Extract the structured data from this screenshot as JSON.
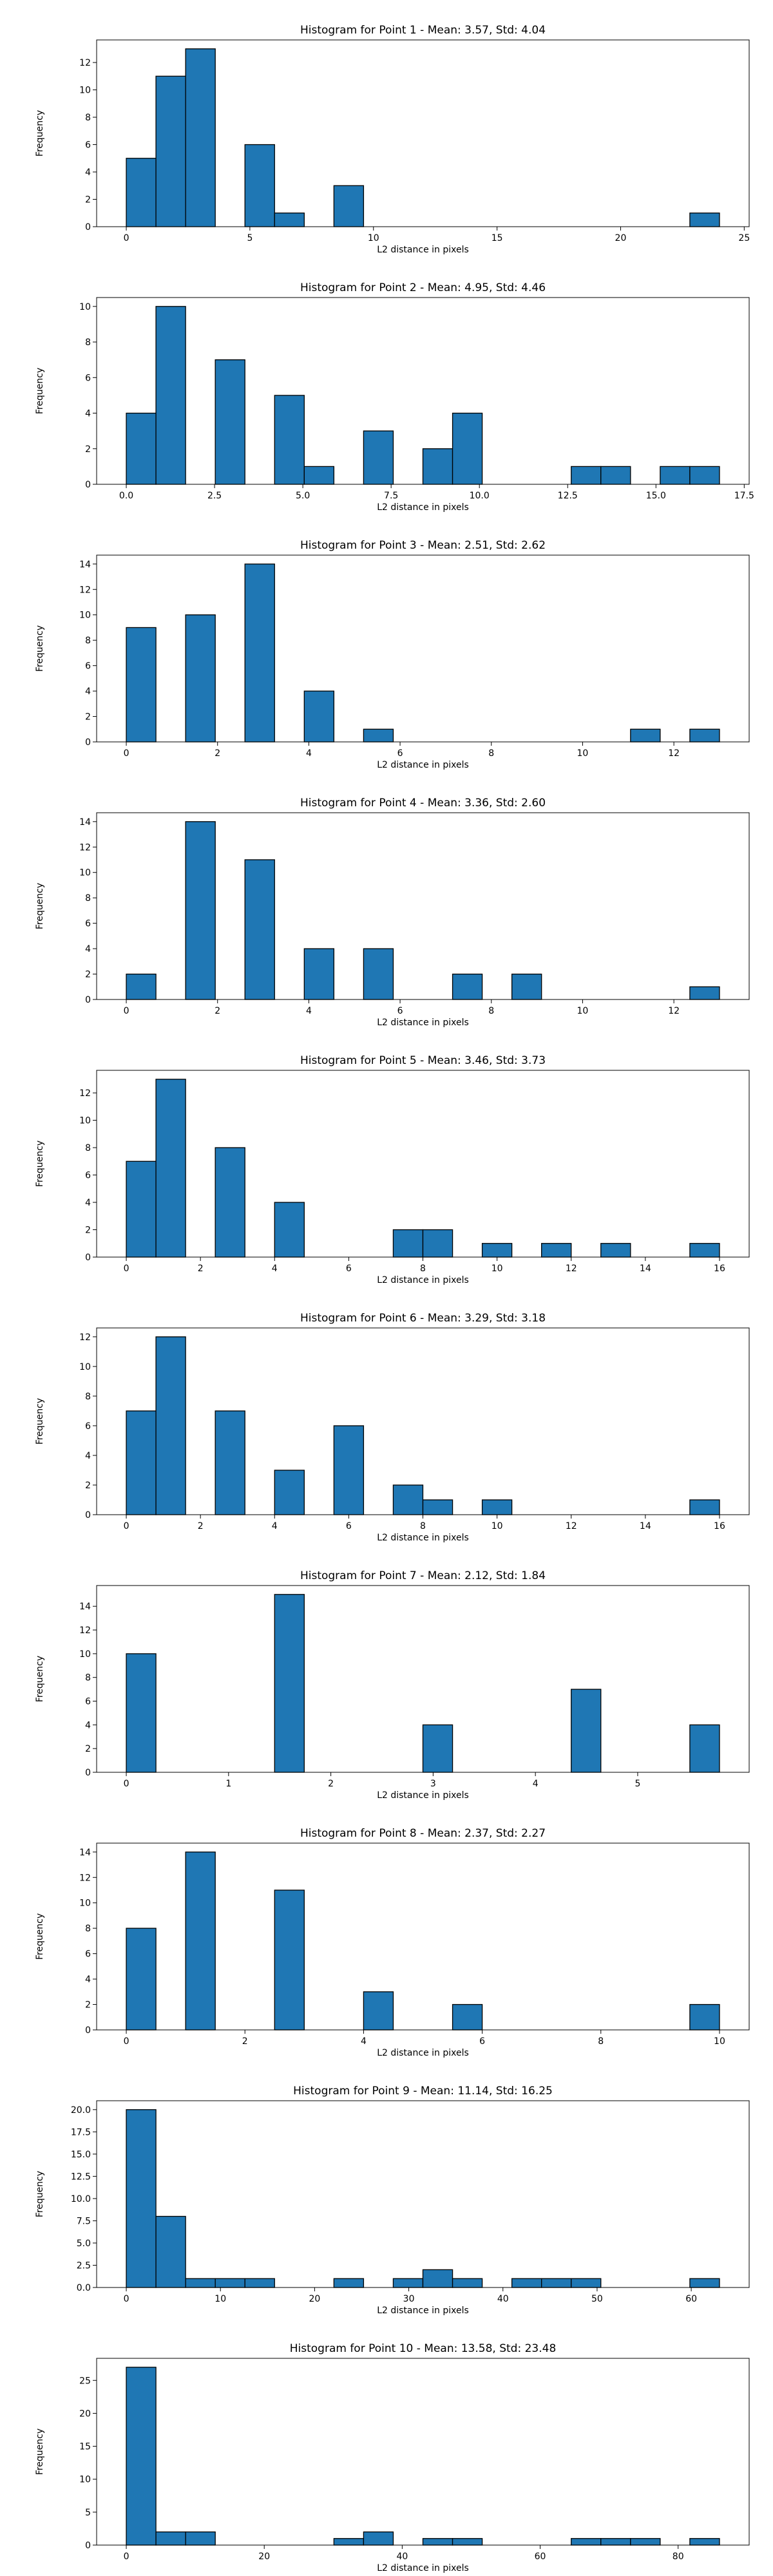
{
  "style": {
    "bar_color": "#1f77b4",
    "edge_color": "#000000",
    "axis_color": "#000000"
  },
  "chart_data": [
    {
      "type": "bar",
      "title": "Histogram for Point 1 - Mean: 3.57, Std: 4.04",
      "xlabel": "L2 distance in pixels",
      "ylabel": "Frequency",
      "xlim": [
        -1.2,
        25.2
      ],
      "ylim": [
        0,
        13.65
      ],
      "xticks": [
        0,
        5,
        10,
        15,
        20,
        25
      ],
      "xtick_labels": [
        "0",
        "5",
        "10",
        "15",
        "20",
        "25"
      ],
      "yticks": [
        0,
        2,
        4,
        6,
        8,
        10,
        12
      ],
      "ytick_labels": [
        "0",
        "2",
        "4",
        "6",
        "8",
        "10",
        "12"
      ],
      "grid": false,
      "bin_edges": [
        0,
        1.2,
        2.4,
        3.6,
        4.8,
        6.0,
        7.2,
        8.4,
        9.6,
        10.8,
        12.0,
        13.2,
        14.4,
        15.6,
        16.8,
        18.0,
        19.2,
        20.4,
        21.6,
        22.8,
        24.0
      ],
      "counts": [
        5,
        11,
        13,
        0,
        6,
        1,
        0,
        3,
        0,
        0,
        0,
        0,
        0,
        0,
        0,
        0,
        0,
        0,
        0,
        1
      ]
    },
    {
      "type": "bar",
      "title": "Histogram for Point 2 - Mean: 4.95, Std: 4.46",
      "xlabel": "L2 distance in pixels",
      "ylabel": "Frequency",
      "xlim": [
        -0.84,
        17.64
      ],
      "ylim": [
        0,
        10.5
      ],
      "xticks": [
        0,
        2.5,
        5,
        7.5,
        10,
        12.5,
        15,
        17.5
      ],
      "xtick_labels": [
        "0.0",
        "2.5",
        "5.0",
        "7.5",
        "10.0",
        "12.5",
        "15.0",
        "17.5"
      ],
      "yticks": [
        0,
        2,
        4,
        6,
        8,
        10
      ],
      "ytick_labels": [
        "0",
        "2",
        "4",
        "6",
        "8",
        "10"
      ],
      "grid": false,
      "bin_edges": [
        0,
        0.84,
        1.68,
        2.52,
        3.36,
        4.2,
        5.04,
        5.88,
        6.72,
        7.56,
        8.4,
        9.24,
        10.08,
        10.92,
        11.76,
        12.6,
        13.44,
        14.28,
        15.12,
        15.96,
        16.8
      ],
      "counts": [
        4,
        10,
        0,
        7,
        0,
        5,
        1,
        0,
        3,
        0,
        2,
        4,
        0,
        0,
        0,
        1,
        1,
        0,
        1,
        1
      ]
    },
    {
      "type": "bar",
      "title": "Histogram for Point 3 - Mean: 2.51, Std: 2.62",
      "xlabel": "L2 distance in pixels",
      "ylabel": "Frequency",
      "xlim": [
        -0.65,
        13.65
      ],
      "ylim": [
        0,
        14.7
      ],
      "xticks": [
        0,
        2,
        4,
        6,
        8,
        10,
        12
      ],
      "xtick_labels": [
        "0",
        "2",
        "4",
        "6",
        "8",
        "10",
        "12"
      ],
      "yticks": [
        0,
        2,
        4,
        6,
        8,
        10,
        12,
        14
      ],
      "ytick_labels": [
        "0",
        "2",
        "4",
        "6",
        "8",
        "10",
        "12",
        "14"
      ],
      "grid": false,
      "bin_edges": [
        0,
        0.65,
        1.3,
        1.95,
        2.6,
        3.25,
        3.9,
        4.55,
        5.2,
        5.85,
        6.5,
        7.15,
        7.8,
        8.45,
        9.1,
        9.75,
        10.4,
        11.05,
        11.7,
        12.35,
        13.0
      ],
      "counts": [
        9,
        0,
        10,
        0,
        14,
        0,
        4,
        0,
        1,
        0,
        0,
        0,
        0,
        0,
        0,
        0,
        0,
        1,
        0,
        1
      ]
    },
    {
      "type": "bar",
      "title": "Histogram for Point 4 - Mean: 3.36, Std: 2.60",
      "xlabel": "L2 distance in pixels",
      "ylabel": "Frequency",
      "xlim": [
        -0.65,
        13.65
      ],
      "ylim": [
        0,
        14.7
      ],
      "xticks": [
        0,
        2,
        4,
        6,
        8,
        10,
        12
      ],
      "xtick_labels": [
        "0",
        "2",
        "4",
        "6",
        "8",
        "10",
        "12"
      ],
      "yticks": [
        0,
        2,
        4,
        6,
        8,
        10,
        12,
        14
      ],
      "ytick_labels": [
        "0",
        "2",
        "4",
        "6",
        "8",
        "10",
        "12",
        "14"
      ],
      "grid": false,
      "bin_edges": [
        0,
        0.65,
        1.3,
        1.95,
        2.6,
        3.25,
        3.9,
        4.55,
        5.2,
        5.85,
        6.5,
        7.15,
        7.8,
        8.45,
        9.1,
        9.75,
        10.4,
        11.05,
        11.7,
        12.35,
        13.0
      ],
      "counts": [
        2,
        0,
        14,
        0,
        11,
        0,
        4,
        0,
        4,
        0,
        0,
        2,
        0,
        2,
        0,
        0,
        0,
        0,
        0,
        1
      ]
    },
    {
      "type": "bar",
      "title": "Histogram for Point 5 - Mean: 3.46, Std: 3.73",
      "xlabel": "L2 distance in pixels",
      "ylabel": "Frequency",
      "xlim": [
        -0.8,
        16.8
      ],
      "ylim": [
        0,
        13.65
      ],
      "xticks": [
        0,
        2,
        4,
        6,
        8,
        10,
        12,
        14,
        16
      ],
      "xtick_labels": [
        "0",
        "2",
        "4",
        "6",
        "8",
        "10",
        "12",
        "14",
        "16"
      ],
      "yticks": [
        0,
        2,
        4,
        6,
        8,
        10,
        12
      ],
      "ytick_labels": [
        "0",
        "2",
        "4",
        "6",
        "8",
        "10",
        "12"
      ],
      "grid": false,
      "bin_edges": [
        0,
        0.8,
        1.6,
        2.4,
        3.2,
        4.0,
        4.8,
        5.6,
        6.4,
        7.2,
        8.0,
        8.8,
        9.6,
        10.4,
        11.2,
        12.0,
        12.8,
        13.6,
        14.4,
        15.2,
        16.0
      ],
      "counts": [
        7,
        13,
        0,
        8,
        0,
        4,
        0,
        0,
        0,
        2,
        2,
        0,
        1,
        0,
        1,
        0,
        1,
        0,
        0,
        1
      ]
    },
    {
      "type": "bar",
      "title": "Histogram for Point 6 - Mean: 3.29, Std: 3.18",
      "xlabel": "L2 distance in pixels",
      "ylabel": "Frequency",
      "xlim": [
        -0.8,
        16.8
      ],
      "ylim": [
        0,
        12.6
      ],
      "xticks": [
        0,
        2,
        4,
        6,
        8,
        10,
        12,
        14,
        16
      ],
      "xtick_labels": [
        "0",
        "2",
        "4",
        "6",
        "8",
        "10",
        "12",
        "14",
        "16"
      ],
      "yticks": [
        0,
        2,
        4,
        6,
        8,
        10,
        12
      ],
      "ytick_labels": [
        "0",
        "2",
        "4",
        "6",
        "8",
        "10",
        "12"
      ],
      "grid": false,
      "bin_edges": [
        0,
        0.8,
        1.6,
        2.4,
        3.2,
        4.0,
        4.8,
        5.6,
        6.4,
        7.2,
        8.0,
        8.8,
        9.6,
        10.4,
        11.2,
        12.0,
        12.8,
        13.6,
        14.4,
        15.2,
        16.0
      ],
      "counts": [
        7,
        12,
        0,
        7,
        0,
        3,
        0,
        6,
        0,
        2,
        1,
        0,
        1,
        0,
        0,
        0,
        0,
        0,
        0,
        1
      ]
    },
    {
      "type": "bar",
      "title": "Histogram for Point 7 - Mean: 2.12, Std: 1.84",
      "xlabel": "L2 distance in pixels",
      "ylabel": "Frequency",
      "xlim": [
        -0.29,
        6.09
      ],
      "ylim": [
        0,
        15.75
      ],
      "xticks": [
        0,
        1,
        2,
        3,
        4,
        5
      ],
      "xtick_labels": [
        "0",
        "1",
        "2",
        "3",
        "4",
        "5"
      ],
      "yticks": [
        0,
        2,
        4,
        6,
        8,
        10,
        12,
        14
      ],
      "ytick_labels": [
        "0",
        "2",
        "4",
        "6",
        "8",
        "10",
        "12",
        "14"
      ],
      "grid": false,
      "bin_edges": [
        0,
        0.29,
        0.58,
        0.87,
        1.16,
        1.45,
        1.74,
        2.03,
        2.32,
        2.61,
        2.9,
        3.19,
        3.48,
        3.77,
        4.06,
        4.35,
        4.64,
        4.93,
        5.22,
        5.51,
        5.8
      ],
      "counts": [
        10,
        0,
        0,
        0,
        0,
        15,
        0,
        0,
        0,
        0,
        4,
        0,
        0,
        0,
        0,
        7,
        0,
        0,
        0,
        4
      ]
    },
    {
      "type": "bar",
      "title": "Histogram for Point 8 - Mean: 2.37, Std: 2.27",
      "xlabel": "L2 distance in pixels",
      "ylabel": "Frequency",
      "xlim": [
        -0.5,
        10.5
      ],
      "ylim": [
        0,
        14.7
      ],
      "xticks": [
        0,
        2,
        4,
        6,
        8,
        10
      ],
      "xtick_labels": [
        "0",
        "2",
        "4",
        "6",
        "8",
        "10"
      ],
      "yticks": [
        0,
        2,
        4,
        6,
        8,
        10,
        12,
        14
      ],
      "ytick_labels": [
        "0",
        "2",
        "4",
        "6",
        "8",
        "10",
        "12",
        "14"
      ],
      "grid": false,
      "bin_edges": [
        0,
        0.5,
        1.0,
        1.5,
        2.0,
        2.5,
        3.0,
        3.5,
        4.0,
        4.5,
        5.0,
        5.5,
        6.0,
        6.5,
        7.0,
        7.5,
        8.0,
        8.5,
        9.0,
        9.5,
        10.0
      ],
      "counts": [
        8,
        0,
        14,
        0,
        0,
        11,
        0,
        0,
        3,
        0,
        0,
        2,
        0,
        0,
        0,
        0,
        0,
        0,
        0,
        2
      ]
    },
    {
      "type": "bar",
      "title": "Histogram for Point 9 - Mean: 11.14, Std: 16.25",
      "xlabel": "L2 distance in pixels",
      "ylabel": "Frequency",
      "xlim": [
        -3.15,
        66.15
      ],
      "ylim": [
        0,
        21.0
      ],
      "xticks": [
        0,
        10,
        20,
        30,
        40,
        50,
        60
      ],
      "xtick_labels": [
        "0",
        "10",
        "20",
        "30",
        "40",
        "50",
        "60"
      ],
      "yticks": [
        0,
        2.5,
        5,
        7.5,
        10,
        12.5,
        15,
        17.5,
        20
      ],
      "ytick_labels": [
        "0.0",
        "2.5",
        "5.0",
        "7.5",
        "10.0",
        "12.5",
        "15.0",
        "17.5",
        "20.0"
      ],
      "grid": false,
      "bin_edges": [
        0,
        3.15,
        6.3,
        9.45,
        12.6,
        15.75,
        18.9,
        22.05,
        25.2,
        28.35,
        31.5,
        34.65,
        37.8,
        40.95,
        44.1,
        47.25,
        50.4,
        53.55,
        56.7,
        59.85,
        63.0
      ],
      "counts": [
        20,
        8,
        1,
        1,
        1,
        0,
        0,
        1,
        0,
        1,
        2,
        1,
        0,
        1,
        1,
        1,
        0,
        0,
        0,
        1
      ]
    },
    {
      "type": "bar",
      "title": "Histogram for Point 10 - Mean: 13.58, Std: 23.48",
      "xlabel": "L2 distance in pixels",
      "ylabel": "Frequency",
      "xlim": [
        -4.3,
        90.3
      ],
      "ylim": [
        0,
        28.35
      ],
      "xticks": [
        0,
        20,
        40,
        60,
        80
      ],
      "xtick_labels": [
        "0",
        "20",
        "40",
        "60",
        "80"
      ],
      "yticks": [
        0,
        5,
        10,
        15,
        20,
        25
      ],
      "ytick_labels": [
        "0",
        "5",
        "10",
        "15",
        "20",
        "25"
      ],
      "grid": false,
      "bin_edges": [
        0,
        4.3,
        8.6,
        12.9,
        17.2,
        21.5,
        25.8,
        30.1,
        34.4,
        38.7,
        43.0,
        47.3,
        51.6,
        55.9,
        60.2,
        64.5,
        68.8,
        73.1,
        77.4,
        81.7,
        86.0
      ],
      "counts": [
        27,
        2,
        2,
        0,
        0,
        0,
        0,
        1,
        2,
        0,
        1,
        1,
        0,
        0,
        0,
        1,
        1,
        1,
        0,
        1
      ]
    }
  ]
}
